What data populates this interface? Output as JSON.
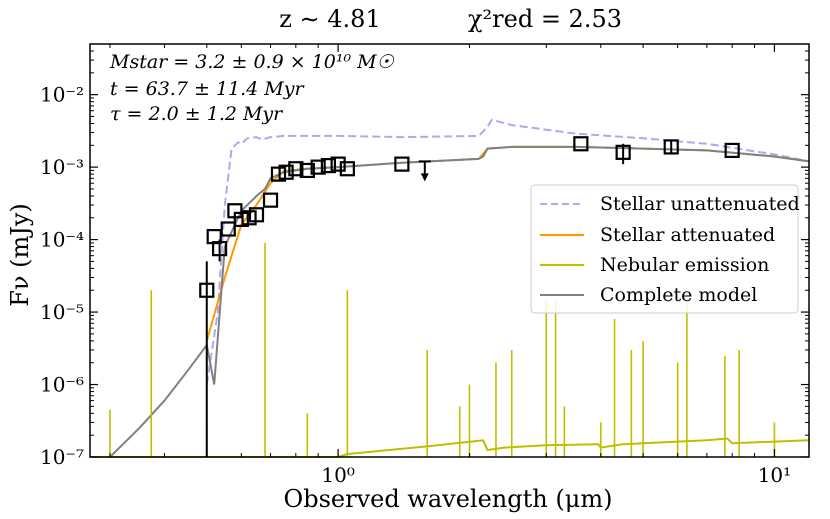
{
  "chart_data": {
    "type": "line",
    "title_left": "z ∼ 4.81",
    "title_right": "χ²red = 2.53",
    "xlabel": "Observed wavelength (μm)",
    "ylabel": "Fν (mJy)",
    "xscale": "log",
    "yscale": "log",
    "xlim": [
      0.27,
      12
    ],
    "ylim": [
      1e-07,
      0.05
    ],
    "x_ticks": [
      {
        "value": 1,
        "label": "10⁰"
      },
      {
        "value": 10,
        "label": "10¹"
      }
    ],
    "y_ticks": [
      {
        "value": 1e-07,
        "label": "10⁻⁷"
      },
      {
        "value": 1e-06,
        "label": "10⁻⁶"
      },
      {
        "value": 1e-05,
        "label": "10⁻⁵"
      },
      {
        "value": 0.0001,
        "label": "10⁻⁴"
      },
      {
        "value": 0.001,
        "label": "10⁻³"
      },
      {
        "value": 0.01,
        "label": "10⁻²"
      }
    ],
    "annotations": [
      "Mstar = 3.2 ± 0.9 × 10¹⁰ M☉",
      "t = 63.7 ± 11.4 Myr",
      "τ = 2.0 ± 1.2 Myr"
    ],
    "legend_position": "right",
    "series": [
      {
        "name": "Stellar unattenuated",
        "color": "#aaaaf0",
        "style": "dashed",
        "x": [
          0.5,
          0.53,
          0.55,
          0.57,
          0.59,
          0.6,
          0.62,
          0.65,
          0.67,
          0.7,
          0.75,
          0.85,
          1.0,
          1.4,
          2.1,
          2.2,
          2.25,
          2.5,
          3.5,
          5.0,
          7.0,
          10.0,
          12.0
        ],
        "y": [
          1e-06,
          1e-05,
          0.0003,
          0.0018,
          0.0022,
          0.0021,
          0.0025,
          0.0026,
          0.0024,
          0.0026,
          0.0027,
          0.0027,
          0.0027,
          0.0026,
          0.0027,
          0.0036,
          0.0045,
          0.0038,
          0.0029,
          0.0025,
          0.0021,
          0.0015,
          0.0012
        ]
      },
      {
        "name": "Stellar attenuated",
        "color": "#ff9900",
        "style": "solid",
        "x": [
          0.5,
          0.55,
          0.6,
          0.65,
          0.7,
          0.75,
          0.85,
          1.0,
          1.4,
          2.1,
          2.2,
          2.5,
          3.5,
          5.0,
          7.0,
          10.0,
          12.0
        ],
        "y": [
          4e-06,
          3e-05,
          0.00016,
          0.0003,
          0.0006,
          0.00088,
          0.00095,
          0.001,
          0.00115,
          0.0013,
          0.0018,
          0.0019,
          0.0019,
          0.0018,
          0.0017,
          0.0014,
          0.0012
        ]
      },
      {
        "name": "Nebular emission",
        "color": "#bfbf00",
        "style": "solid",
        "x": [
          0.27,
          1.0,
          1.05,
          1.6,
          2.15,
          2.2,
          2.4,
          3.0,
          3.95,
          4.0,
          4.5,
          7.0,
          7.8,
          8.0,
          12.0
        ],
        "y": [
          1e-07,
          1e-07,
          1.1e-07,
          1.4e-07,
          1.7e-07,
          1.25e-07,
          1.35e-07,
          1.45e-07,
          1.5e-07,
          1.35e-07,
          1.5e-07,
          1.7e-07,
          1.8e-07,
          1.55e-07,
          1.7e-07
        ]
      },
      {
        "name": "Complete model",
        "color": "#808080",
        "style": "solid",
        "x": [
          0.3,
          0.35,
          0.4,
          0.45,
          0.5,
          0.52,
          0.55,
          0.6,
          0.65,
          0.68,
          0.7,
          0.75,
          0.85,
          1.0,
          1.4,
          2.1,
          2.15,
          2.2,
          2.5,
          3.5,
          5.0,
          7.0,
          10.0,
          12.0
        ],
        "y": [
          1e-07,
          2.5e-07,
          6e-07,
          1.5e-06,
          3.5e-06,
          1e-06,
          8e-05,
          0.00025,
          0.0004,
          0.0005,
          0.0007,
          0.00085,
          0.00095,
          0.001,
          0.00115,
          0.0013,
          0.0014,
          0.0018,
          0.0019,
          0.0019,
          0.0018,
          0.0017,
          0.0014,
          0.0012
        ]
      }
    ],
    "emission_lines": [
      {
        "x": 0.3,
        "y": 4.5e-07
      },
      {
        "x": 0.373,
        "y": 2e-05
      },
      {
        "x": 0.5,
        "y": 3e-07
      },
      {
        "x": 0.68,
        "y": 9e-05
      },
      {
        "x": 0.85,
        "y": 4e-07
      },
      {
        "x": 1.05,
        "y": 2e-05
      },
      {
        "x": 1.6,
        "y": 3e-06
      },
      {
        "x": 1.9,
        "y": 5e-07
      },
      {
        "x": 2.0,
        "y": 1e-06
      },
      {
        "x": 2.3,
        "y": 2e-06
      },
      {
        "x": 2.5,
        "y": 3e-06
      },
      {
        "x": 3.0,
        "y": 1.5e-05
      },
      {
        "x": 3.15,
        "y": 1.5e-05
      },
      {
        "x": 3.3,
        "y": 5e-07
      },
      {
        "x": 4.0,
        "y": 3e-07
      },
      {
        "x": 4.3,
        "y": 8e-06
      },
      {
        "x": 4.7,
        "y": 3e-06
      },
      {
        "x": 5.0,
        "y": 4e-06
      },
      {
        "x": 6.0,
        "y": 2e-06
      },
      {
        "x": 6.3,
        "y": 1.5e-05
      },
      {
        "x": 7.7,
        "y": 2.5e-06
      },
      {
        "x": 8.3,
        "y": 3e-06
      },
      {
        "x": 10.0,
        "y": 3e-07
      }
    ],
    "observations": [
      {
        "x": 0.5,
        "y": 2e-05,
        "ylo": 1e-07,
        "yhi": 5e-05
      },
      {
        "x": 0.52,
        "y": 0.00011
      },
      {
        "x": 0.535,
        "y": 7.5e-05,
        "ylo": 5e-05,
        "yhi": 0.0001
      },
      {
        "x": 0.56,
        "y": 0.00014
      },
      {
        "x": 0.58,
        "y": 0.00025
      },
      {
        "x": 0.6,
        "y": 0.00019
      },
      {
        "x": 0.625,
        "y": 0.0002
      },
      {
        "x": 0.65,
        "y": 0.00022
      },
      {
        "x": 0.7,
        "y": 0.00035
      },
      {
        "x": 0.73,
        "y": 0.0008
      },
      {
        "x": 0.76,
        "y": 0.00085
      },
      {
        "x": 0.8,
        "y": 0.00095
      },
      {
        "x": 0.85,
        "y": 0.0009
      },
      {
        "x": 0.9,
        "y": 0.001
      },
      {
        "x": 0.95,
        "y": 0.00105
      },
      {
        "x": 1.0,
        "y": 0.0011
      },
      {
        "x": 1.05,
        "y": 0.00095
      },
      {
        "x": 1.4,
        "y": 0.0011
      },
      {
        "x": 3.6,
        "y": 0.0021
      },
      {
        "x": 4.5,
        "y": 0.0016,
        "ylo": 0.0011,
        "yhi": 0.0021
      },
      {
        "x": 5.8,
        "y": 0.0019,
        "ylo": 0.0015,
        "yhi": 0.0023
      },
      {
        "x": 8.0,
        "y": 0.0017
      }
    ],
    "upper_limits": [
      {
        "x": 1.58,
        "y": 0.0012
      }
    ]
  }
}
